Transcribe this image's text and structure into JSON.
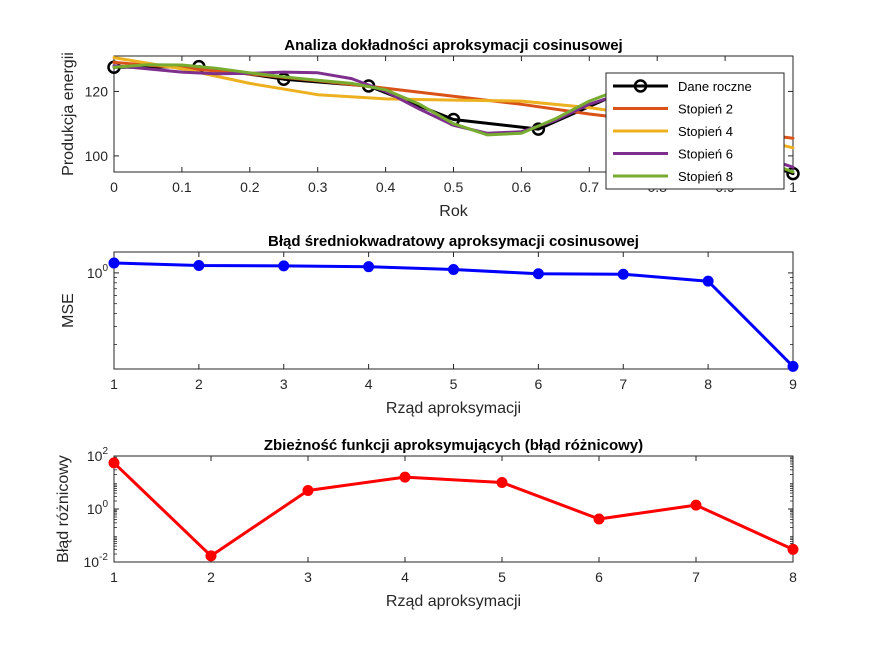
{
  "chart_data": [
    {
      "type": "line",
      "title": "Analiza dokładności aproksymacji cosinusowej",
      "xlabel": "Rok",
      "ylabel": "Produkcja energii",
      "xlim": [
        0,
        1
      ],
      "ylim": [
        95,
        131
      ],
      "xticks": [
        "0",
        "0.1",
        "0.2",
        "0.3",
        "0.4",
        "0.5",
        "0.6",
        "0.7",
        "0.8",
        "0.9",
        "1"
      ],
      "yticks": [
        "100",
        "120"
      ],
      "legend_position": "top-right",
      "series": [
        {
          "name": "Dane roczne",
          "color": "#000000",
          "marker": "circle",
          "x": [
            0,
            0.125,
            0.25,
            0.375,
            0.5,
            0.625,
            0.75,
            0.875,
            1
          ],
          "y": [
            127.5,
            127.7,
            123.8,
            121.7,
            111.3,
            108.3,
            120,
            104,
            94.5
          ]
        },
        {
          "name": "Stopień 2",
          "color": "#D95319",
          "x": [
            0,
            0.1,
            0.2,
            0.3,
            0.4,
            0.5,
            0.6,
            0.7,
            0.8,
            0.9,
            1
          ],
          "y": [
            129,
            127.3,
            125.4,
            123.3,
            121,
            118.5,
            116,
            113,
            110.5,
            108,
            105.5
          ]
        },
        {
          "name": "Stopień 4",
          "color": "#EDB120",
          "x": [
            0,
            0.1,
            0.2,
            0.3,
            0.4,
            0.5,
            0.6,
            0.7,
            0.8,
            0.9,
            1
          ],
          "y": [
            130.5,
            127,
            122.5,
            119,
            117.7,
            117.3,
            117,
            115,
            112,
            107.5,
            102.5
          ]
        },
        {
          "name": "Stopień 6",
          "color": "#7E2F8E",
          "x": [
            0,
            0.05,
            0.1,
            0.15,
            0.2,
            0.25,
            0.3,
            0.35,
            0.4,
            0.45,
            0.5,
            0.55,
            0.6,
            0.65,
            0.7,
            0.75,
            0.8,
            0.85,
            0.9,
            0.95,
            1
          ],
          "y": [
            128,
            127,
            126,
            125.5,
            125.6,
            126,
            125.8,
            124,
            120,
            114.5,
            109.5,
            107,
            107.5,
            111,
            116,
            119.5,
            119,
            114.5,
            107,
            100,
            96.5
          ]
        },
        {
          "name": "Stopień 8",
          "color": "#77AC30",
          "x": [
            0,
            0.05,
            0.1,
            0.15,
            0.2,
            0.25,
            0.3,
            0.35,
            0.4,
            0.45,
            0.5,
            0.55,
            0.6,
            0.65,
            0.7,
            0.75,
            0.8,
            0.85,
            0.9,
            0.95,
            1
          ],
          "y": [
            127.5,
            128.3,
            128.2,
            127.2,
            125.8,
            124.5,
            123.5,
            122.5,
            120.5,
            116,
            110,
            106.5,
            107,
            111.5,
            117,
            121,
            119.5,
            114,
            106,
            99,
            95
          ]
        }
      ]
    },
    {
      "type": "line",
      "title": "Błąd średniokwadratowy aproksymacji cosinusowej",
      "xlabel": "Rząd aproksymacji",
      "ylabel": "MSE",
      "yscale": "log",
      "xlim": [
        1,
        9
      ],
      "ylim": [
        0.115,
        1.6
      ],
      "xticks": [
        "1",
        "2",
        "3",
        "4",
        "5",
        "6",
        "7",
        "8",
        "9"
      ],
      "yticks": [
        "10^0"
      ],
      "series": [
        {
          "name": "",
          "color": "#0000FF",
          "marker": "filled-circle",
          "x": [
            1,
            2,
            3,
            4,
            5,
            6,
            7,
            8,
            9
          ],
          "y": [
            1.25,
            1.18,
            1.17,
            1.15,
            1.08,
            0.98,
            0.97,
            0.83,
            0.122
          ]
        }
      ]
    },
    {
      "type": "line",
      "title": "Zbieżność funkcji aproksymujących (błąd różnicowy)",
      "xlabel": "Rząd aproksymacji",
      "ylabel": "Błąd różnicowy",
      "yscale": "log",
      "xlim": [
        1,
        8
      ],
      "ylim": [
        0.01,
        100
      ],
      "xticks": [
        "1",
        "2",
        "3",
        "4",
        "5",
        "6",
        "7",
        "8"
      ],
      "yticks": [
        "10^-2",
        "10^0",
        "10^2"
      ],
      "series": [
        {
          "name": "",
          "color": "#FF0000",
          "marker": "filled-circle",
          "x": [
            1,
            2,
            3,
            4,
            5,
            6,
            7,
            8
          ],
          "y": [
            55,
            0.017,
            5,
            16,
            10,
            0.42,
            1.4,
            0.03
          ]
        }
      ]
    }
  ]
}
